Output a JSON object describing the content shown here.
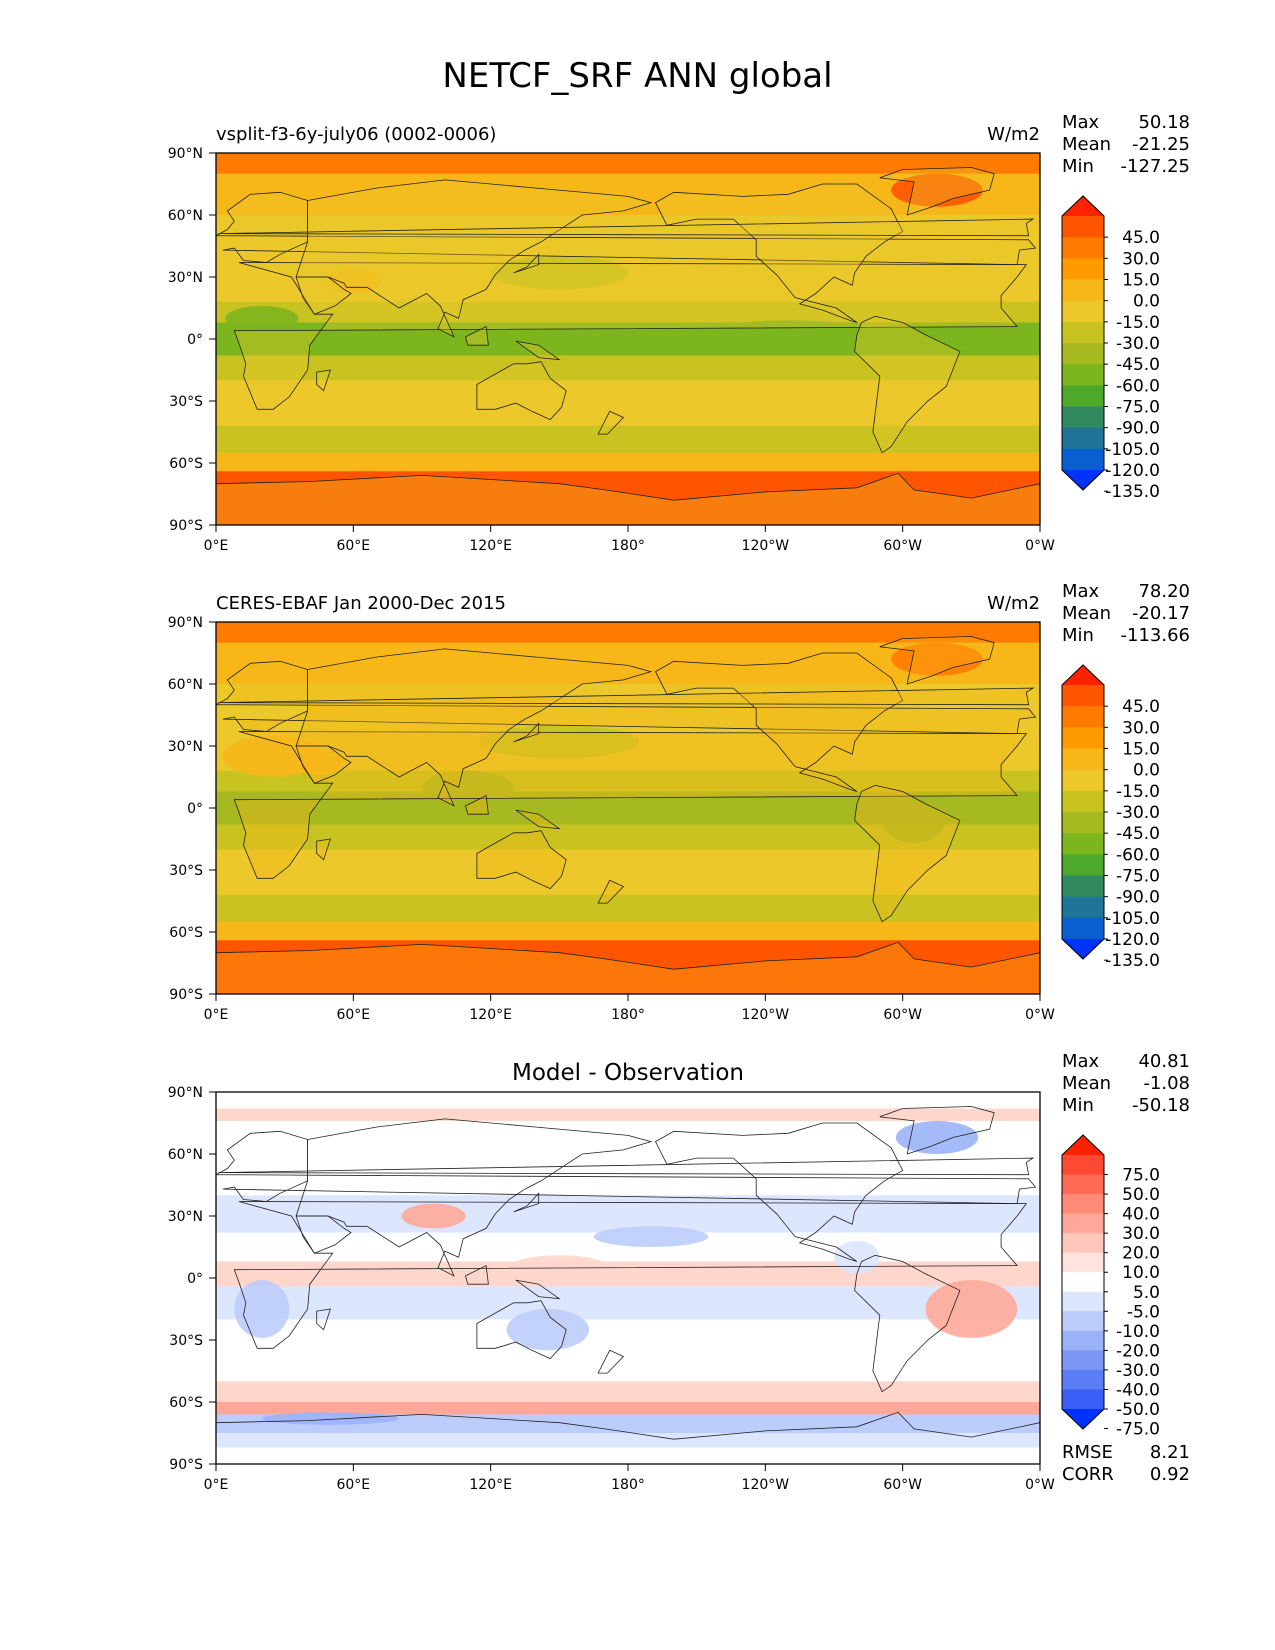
{
  "figure_title": "NETCF_SRF ANN global",
  "chart_data": [
    {
      "type": "heatmap",
      "title_left": "vsplit-f3-6y-july06 (0002-0006)",
      "title_center": "",
      "units": "W/m2",
      "stats": {
        "Max": "50.18",
        "Mean": "-21.25",
        "Min": "-127.25"
      },
      "xtick_labels": [
        "0°E",
        "60°E",
        "120°E",
        "180°",
        "120°W",
        "60°W",
        "0°W"
      ],
      "ytick_labels": [
        "90°N",
        "60°N",
        "30°N",
        "0°",
        "30°S",
        "60°S",
        "90°S"
      ],
      "colorbar_labels": [
        "45.0",
        "30.0",
        "15.0",
        "0.0",
        "-15.0",
        "-30.0",
        "-45.0",
        "-60.0",
        "-75.0",
        "-90.0",
        "-105.0",
        "-120.0",
        "-135.0"
      ],
      "colorbar_colors": [
        "#ff2200",
        "#ff5500",
        "#ff7a00",
        "#ff9a00",
        "#f7b719",
        "#ecc82a",
        "#c9c321",
        "#a7b920",
        "#7db51e",
        "#4ea82a",
        "#318a5e",
        "#1f7498",
        "#0a5fd0",
        "#0033ff"
      ],
      "fill_colors": {
        "polar_high": "#ff7a00",
        "midlat": "#f7b719",
        "subtropics": "#ecc82a",
        "tropics": "#c9c321",
        "tropics_deep": "#7db51e",
        "antarctic": "#ff5500",
        "land": "#ecc82a"
      },
      "stats_bottom": null
    },
    {
      "type": "heatmap",
      "title_left": "CERES-EBAF Jan 2000-Dec 2015",
      "title_center": "",
      "units": "W/m2",
      "stats": {
        "Max": "78.20",
        "Mean": "-20.17",
        "Min": "-113.66"
      },
      "xtick_labels": [
        "0°E",
        "60°E",
        "120°E",
        "180°",
        "120°W",
        "60°W",
        "0°W"
      ],
      "ytick_labels": [
        "90°N",
        "60°N",
        "30°N",
        "0°",
        "30°S",
        "60°S",
        "90°S"
      ],
      "colorbar_labels": [
        "45.0",
        "30.0",
        "15.0",
        "0.0",
        "-15.0",
        "-30.0",
        "-45.0",
        "-60.0",
        "-75.0",
        "-90.0",
        "-105.0",
        "-120.0",
        "-135.0"
      ],
      "colorbar_colors": [
        "#ff2200",
        "#ff5500",
        "#ff7a00",
        "#ff9a00",
        "#f7b719",
        "#ecc82a",
        "#c9c321",
        "#a7b920",
        "#7db51e",
        "#4ea82a",
        "#318a5e",
        "#1f7498",
        "#0a5fd0",
        "#0033ff"
      ],
      "fill_colors": {
        "polar_high": "#ff7a00",
        "midlat": "#f7b719",
        "subtropics": "#ecc82a",
        "tropics": "#c9c321",
        "tropics_deep": "#a7b920",
        "antarctic": "#ff5500",
        "land": "#f7b719"
      },
      "stats_bottom": null
    },
    {
      "type": "heatmap",
      "title_left": "",
      "title_center": "Model - Observation",
      "units": "",
      "stats": {
        "Max": "40.81",
        "Mean": "-1.08",
        "Min": "-50.18"
      },
      "xtick_labels": [
        "0°E",
        "60°E",
        "120°E",
        "180°",
        "120°W",
        "60°W",
        "0°W"
      ],
      "ytick_labels": [
        "90°N",
        "60°N",
        "30°N",
        "0°",
        "30°S",
        "60°S",
        "90°S"
      ],
      "colorbar_labels": [
        "75.0",
        "50.0",
        "40.0",
        "30.0",
        "20.0",
        "10.0",
        "5.0",
        "-5.0",
        "-10.0",
        "-20.0",
        "-30.0",
        "-40.0",
        "-50.0",
        "-75.0"
      ],
      "colorbar_colors": [
        "#ff2200",
        "#ff4a33",
        "#ff6b55",
        "#ff8a77",
        "#ffa899",
        "#ffc7bc",
        "#ffe4dd",
        "#ffffff",
        "#dde6ff",
        "#bccdfb",
        "#9bb2f8",
        "#7a97f6",
        "#5a7cf4",
        "#3a5ff6",
        "#0033ff"
      ],
      "fill_colors": {
        "background": "#ffffff",
        "pos_light": "#ffd6cc",
        "pos_mid": "#ffa899",
        "neg_light": "#dde6ff",
        "neg_mid": "#bccdfb",
        "neg_deep": "#9bb2f8"
      },
      "stats_bottom": {
        "RMSE": "8.21",
        "CORR": "0.92"
      }
    }
  ]
}
